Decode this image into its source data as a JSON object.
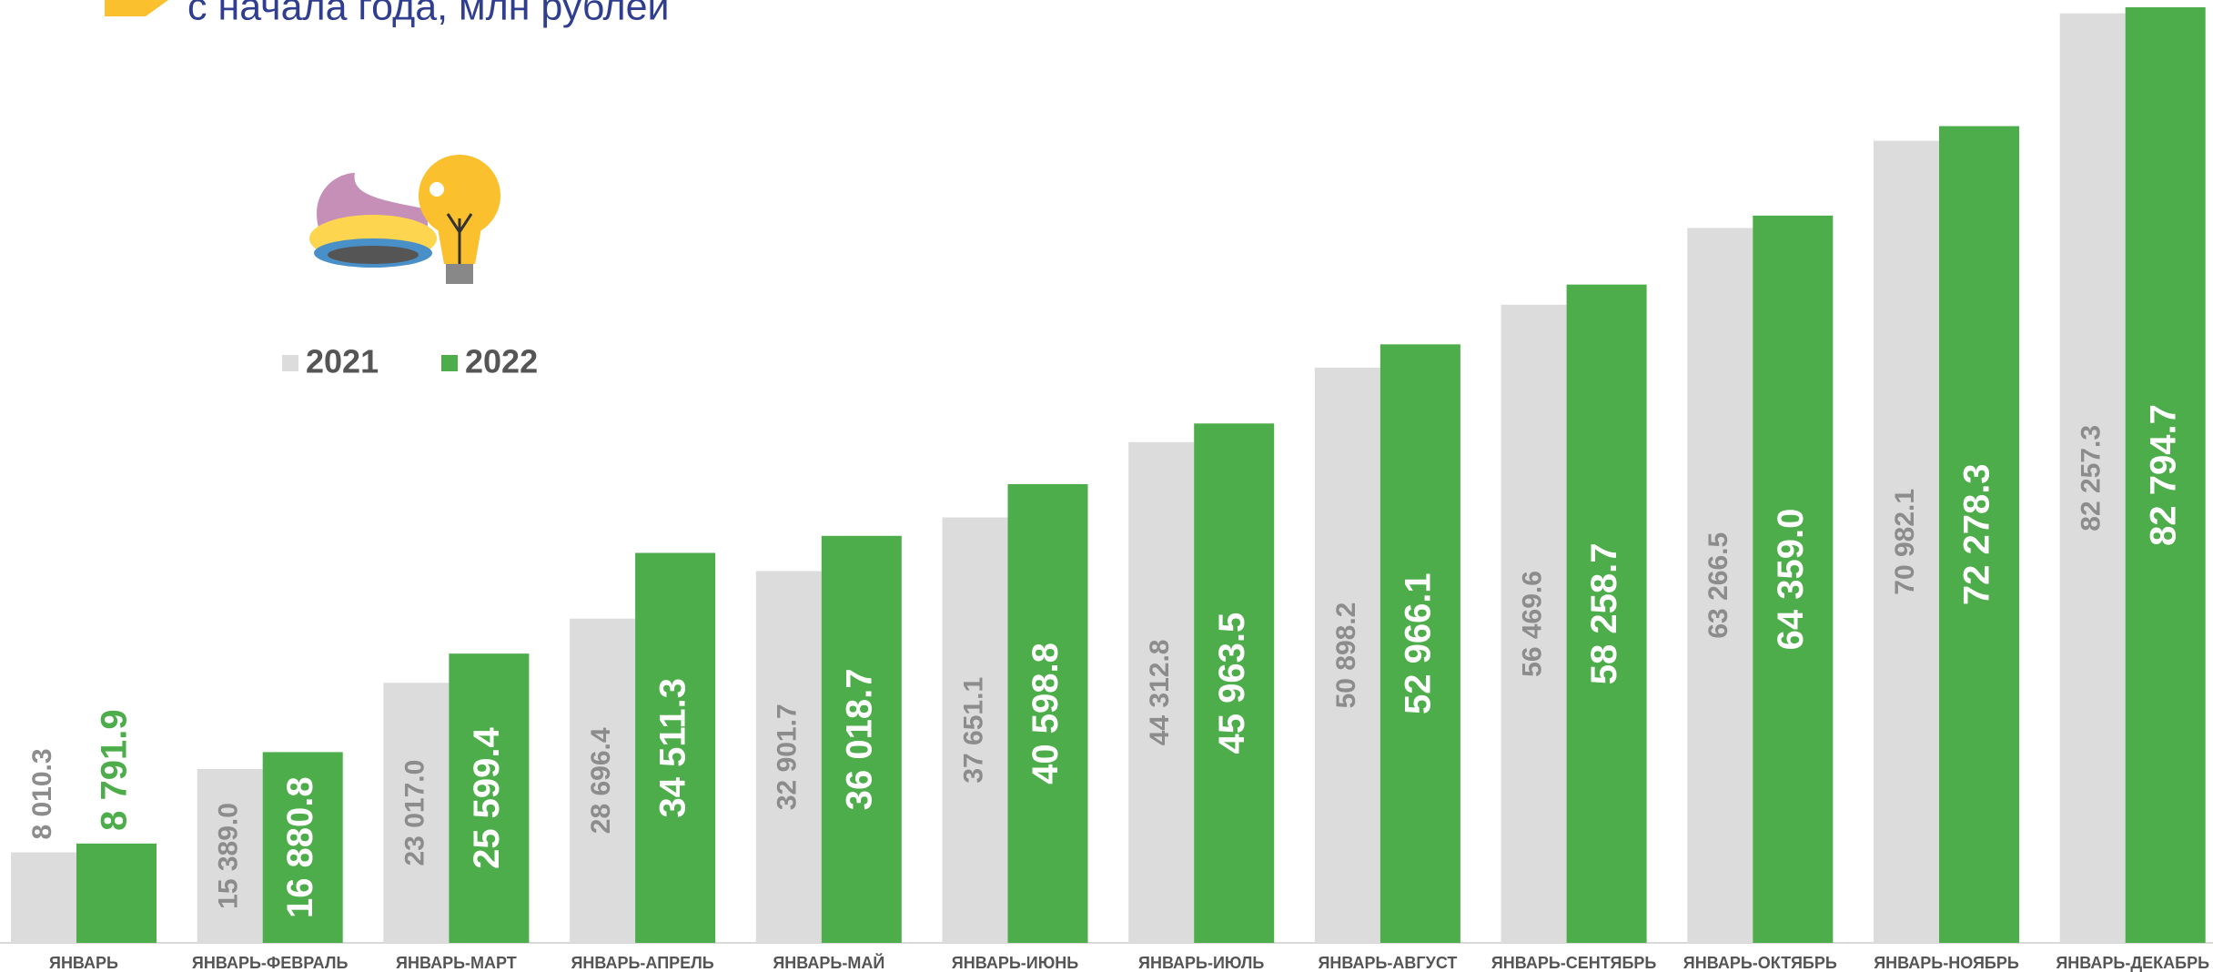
{
  "chart_data": {
    "type": "bar",
    "title": "с начала года, млн рублей",
    "categories": [
      "ЯНВАРЬ",
      "ЯНВАРЬ-ФЕВРАЛЬ",
      "ЯНВАРЬ-МАРТ",
      "ЯНВАРЬ-АПРЕЛЬ",
      "ЯНВАРЬ-МАЙ",
      "ЯНВАРЬ-ИЮНЬ",
      "ЯНВАРЬ-ИЮЛЬ",
      "ЯНВАРЬ-АВГУСТ",
      "ЯНВАРЬ-СЕНТЯБРЬ",
      "ЯНВАРЬ-ОКТЯБРЬ",
      "ЯНВАРЬ-НОЯБРЬ",
      "ЯНВАРЬ-ДЕКАБРЬ"
    ],
    "series": [
      {
        "name": "2021",
        "color": "#dcdcdc",
        "values": [
          8010.3,
          15389.0,
          23017.0,
          28696.4,
          32901.7,
          37651.1,
          44312.8,
          50898.2,
          56469.6,
          63266.5,
          70982.1,
          82257.3
        ],
        "value_labels": [
          "8 010.3",
          "15 389.0",
          "23 017.0",
          "28 696.4",
          "32 901.7",
          "37 651.1",
          "44 312.8",
          "50 898.2",
          "56 469.6",
          "63 266.5",
          "70 982.1",
          "82 257.3"
        ]
      },
      {
        "name": "2022",
        "color": "#4dad4a",
        "values": [
          8791.9,
          16880.8,
          25599.4,
          34511.3,
          36018.7,
          40598.8,
          45963.5,
          52966.1,
          58258.7,
          64359.0,
          72278.3,
          82794.7
        ],
        "value_labels": [
          "8 791.9",
          "16 880.8",
          "25 599.4",
          "34 511.3",
          "36 018.7",
          "40 598.8",
          "45 963.5",
          "52 966.1",
          "58 258.7",
          "64 359.0",
          "72 278.3",
          "82 794.7"
        ]
      }
    ]
  }
}
